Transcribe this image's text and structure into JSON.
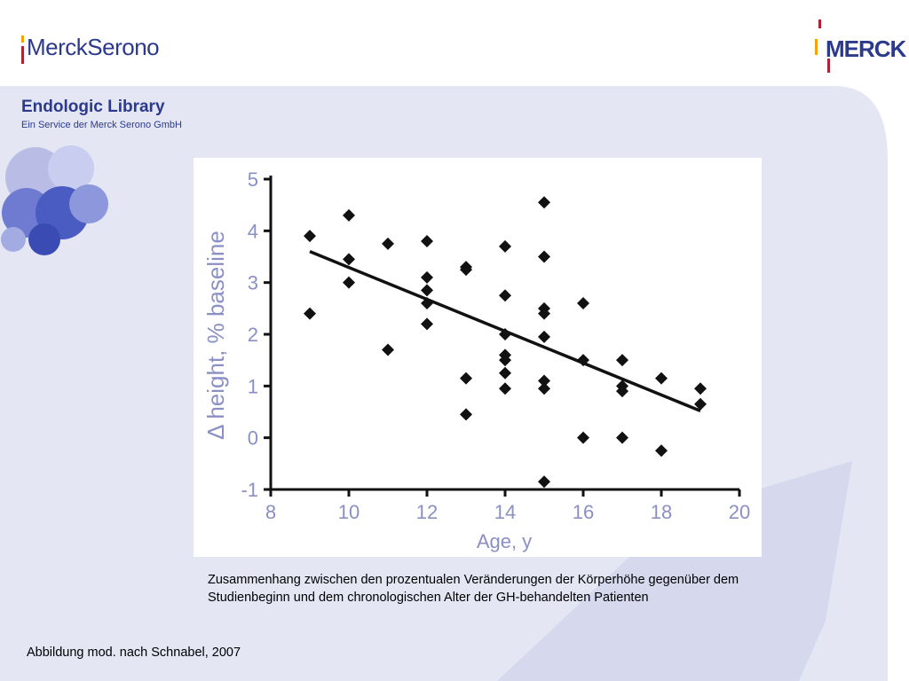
{
  "brand": {
    "left_logo_text": "MerckSerono",
    "right_logo_text": "MERCK"
  },
  "library": {
    "title": "Endologic Library",
    "subtitle": "Ein Service der Merck Serono GmbH"
  },
  "caption": "Zusammenhang zwischen den prozentualen Veränderungen der Körperhöhe gegenüber dem Studienbeginn und dem chronologischen Alter der GH-behandelten Patienten",
  "source": "Abbildung mod. nach Schnabel, 2007",
  "colors": {
    "brand_blue": "#2b3a8c",
    "background_panel": "#e4e6f4",
    "axis_text": "#8a8fc4",
    "marker": "#111111"
  },
  "chart_data": {
    "type": "scatter",
    "xlabel": "Age, y",
    "ylabel": "Δ height, % baseline",
    "xlim": [
      8,
      20
    ],
    "ylim": [
      -1,
      5
    ],
    "xticks": [
      8,
      10,
      12,
      14,
      16,
      18,
      20
    ],
    "yticks": [
      -1,
      0,
      1,
      2,
      3,
      4,
      5
    ],
    "grid": false,
    "legend": "none",
    "points": [
      [
        9,
        3.9
      ],
      [
        9,
        2.4
      ],
      [
        10,
        4.3
      ],
      [
        10,
        3.45
      ],
      [
        10,
        3.0
      ],
      [
        11,
        3.75
      ],
      [
        11,
        1.7
      ],
      [
        12,
        3.8
      ],
      [
        12,
        3.1
      ],
      [
        12,
        2.85
      ],
      [
        12,
        2.6
      ],
      [
        12,
        2.2
      ],
      [
        13,
        3.3
      ],
      [
        13,
        3.25
      ],
      [
        13,
        1.15
      ],
      [
        13,
        0.45
      ],
      [
        14,
        3.7
      ],
      [
        14,
        2.75
      ],
      [
        14,
        2.0
      ],
      [
        14,
        1.6
      ],
      [
        14,
        1.5
      ],
      [
        14,
        1.25
      ],
      [
        14,
        0.95
      ],
      [
        15,
        4.55
      ],
      [
        15,
        3.5
      ],
      [
        15,
        2.5
      ],
      [
        15,
        2.4
      ],
      [
        15,
        1.95
      ],
      [
        15,
        1.1
      ],
      [
        15,
        0.95
      ],
      [
        15,
        -0.85
      ],
      [
        16,
        2.6
      ],
      [
        16,
        1.5
      ],
      [
        16,
        0.0
      ],
      [
        17,
        1.5
      ],
      [
        17,
        1.0
      ],
      [
        17,
        0.9
      ],
      [
        17,
        0.0
      ],
      [
        18,
        1.15
      ],
      [
        18,
        -0.25
      ],
      [
        19,
        0.95
      ],
      [
        19,
        0.65
      ]
    ],
    "trendline": {
      "x": [
        9,
        19
      ],
      "y": [
        3.6,
        0.52
      ]
    }
  }
}
